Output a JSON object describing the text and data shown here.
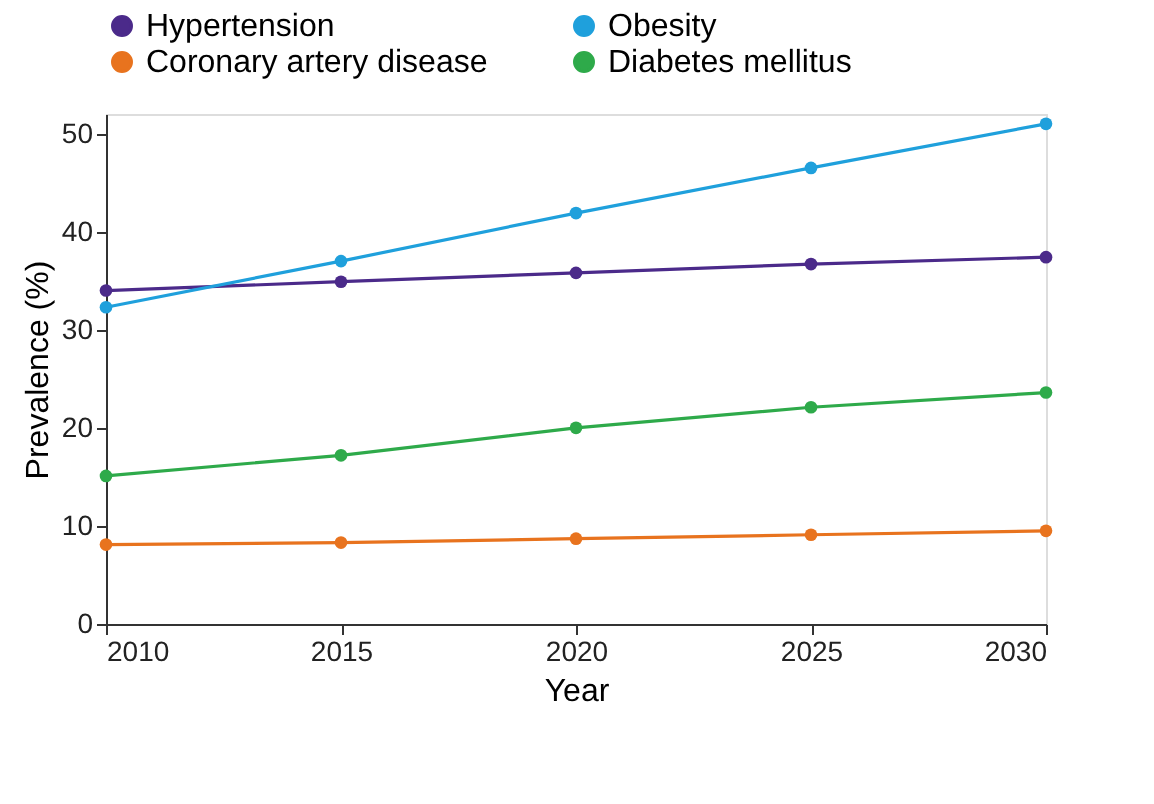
{
  "chart_data": {
    "type": "line",
    "xlabel": "Year",
    "ylabel": "Prevalence (%)",
    "x": [
      2010,
      2015,
      2020,
      2025,
      2030
    ],
    "series": [
      {
        "name": "Hypertension",
        "color": "#4b2a8a",
        "values": [
          34.0,
          34.9,
          35.8,
          36.7,
          37.4
        ]
      },
      {
        "name": "Obesity",
        "color": "#1fa0dc",
        "values": [
          32.3,
          37.0,
          41.9,
          46.5,
          51.0
        ]
      },
      {
        "name": "Coronary artery disease",
        "color": "#e8731e",
        "values": [
          8.1,
          8.3,
          8.7,
          9.1,
          9.5
        ]
      },
      {
        "name": "Diabetes mellitus",
        "color": "#2eaa4a",
        "values": [
          15.1,
          17.2,
          20.0,
          22.1,
          23.6
        ]
      }
    ],
    "xlim": [
      2010,
      2030
    ],
    "xticks": [
      2010,
      2015,
      2020,
      2025,
      2030
    ],
    "ylim": [
      0,
      52
    ],
    "yticks": [
      0,
      10,
      20,
      30,
      40,
      50
    ],
    "grid": false,
    "legend": "top",
    "marker": "circle",
    "line_style": "solid"
  }
}
